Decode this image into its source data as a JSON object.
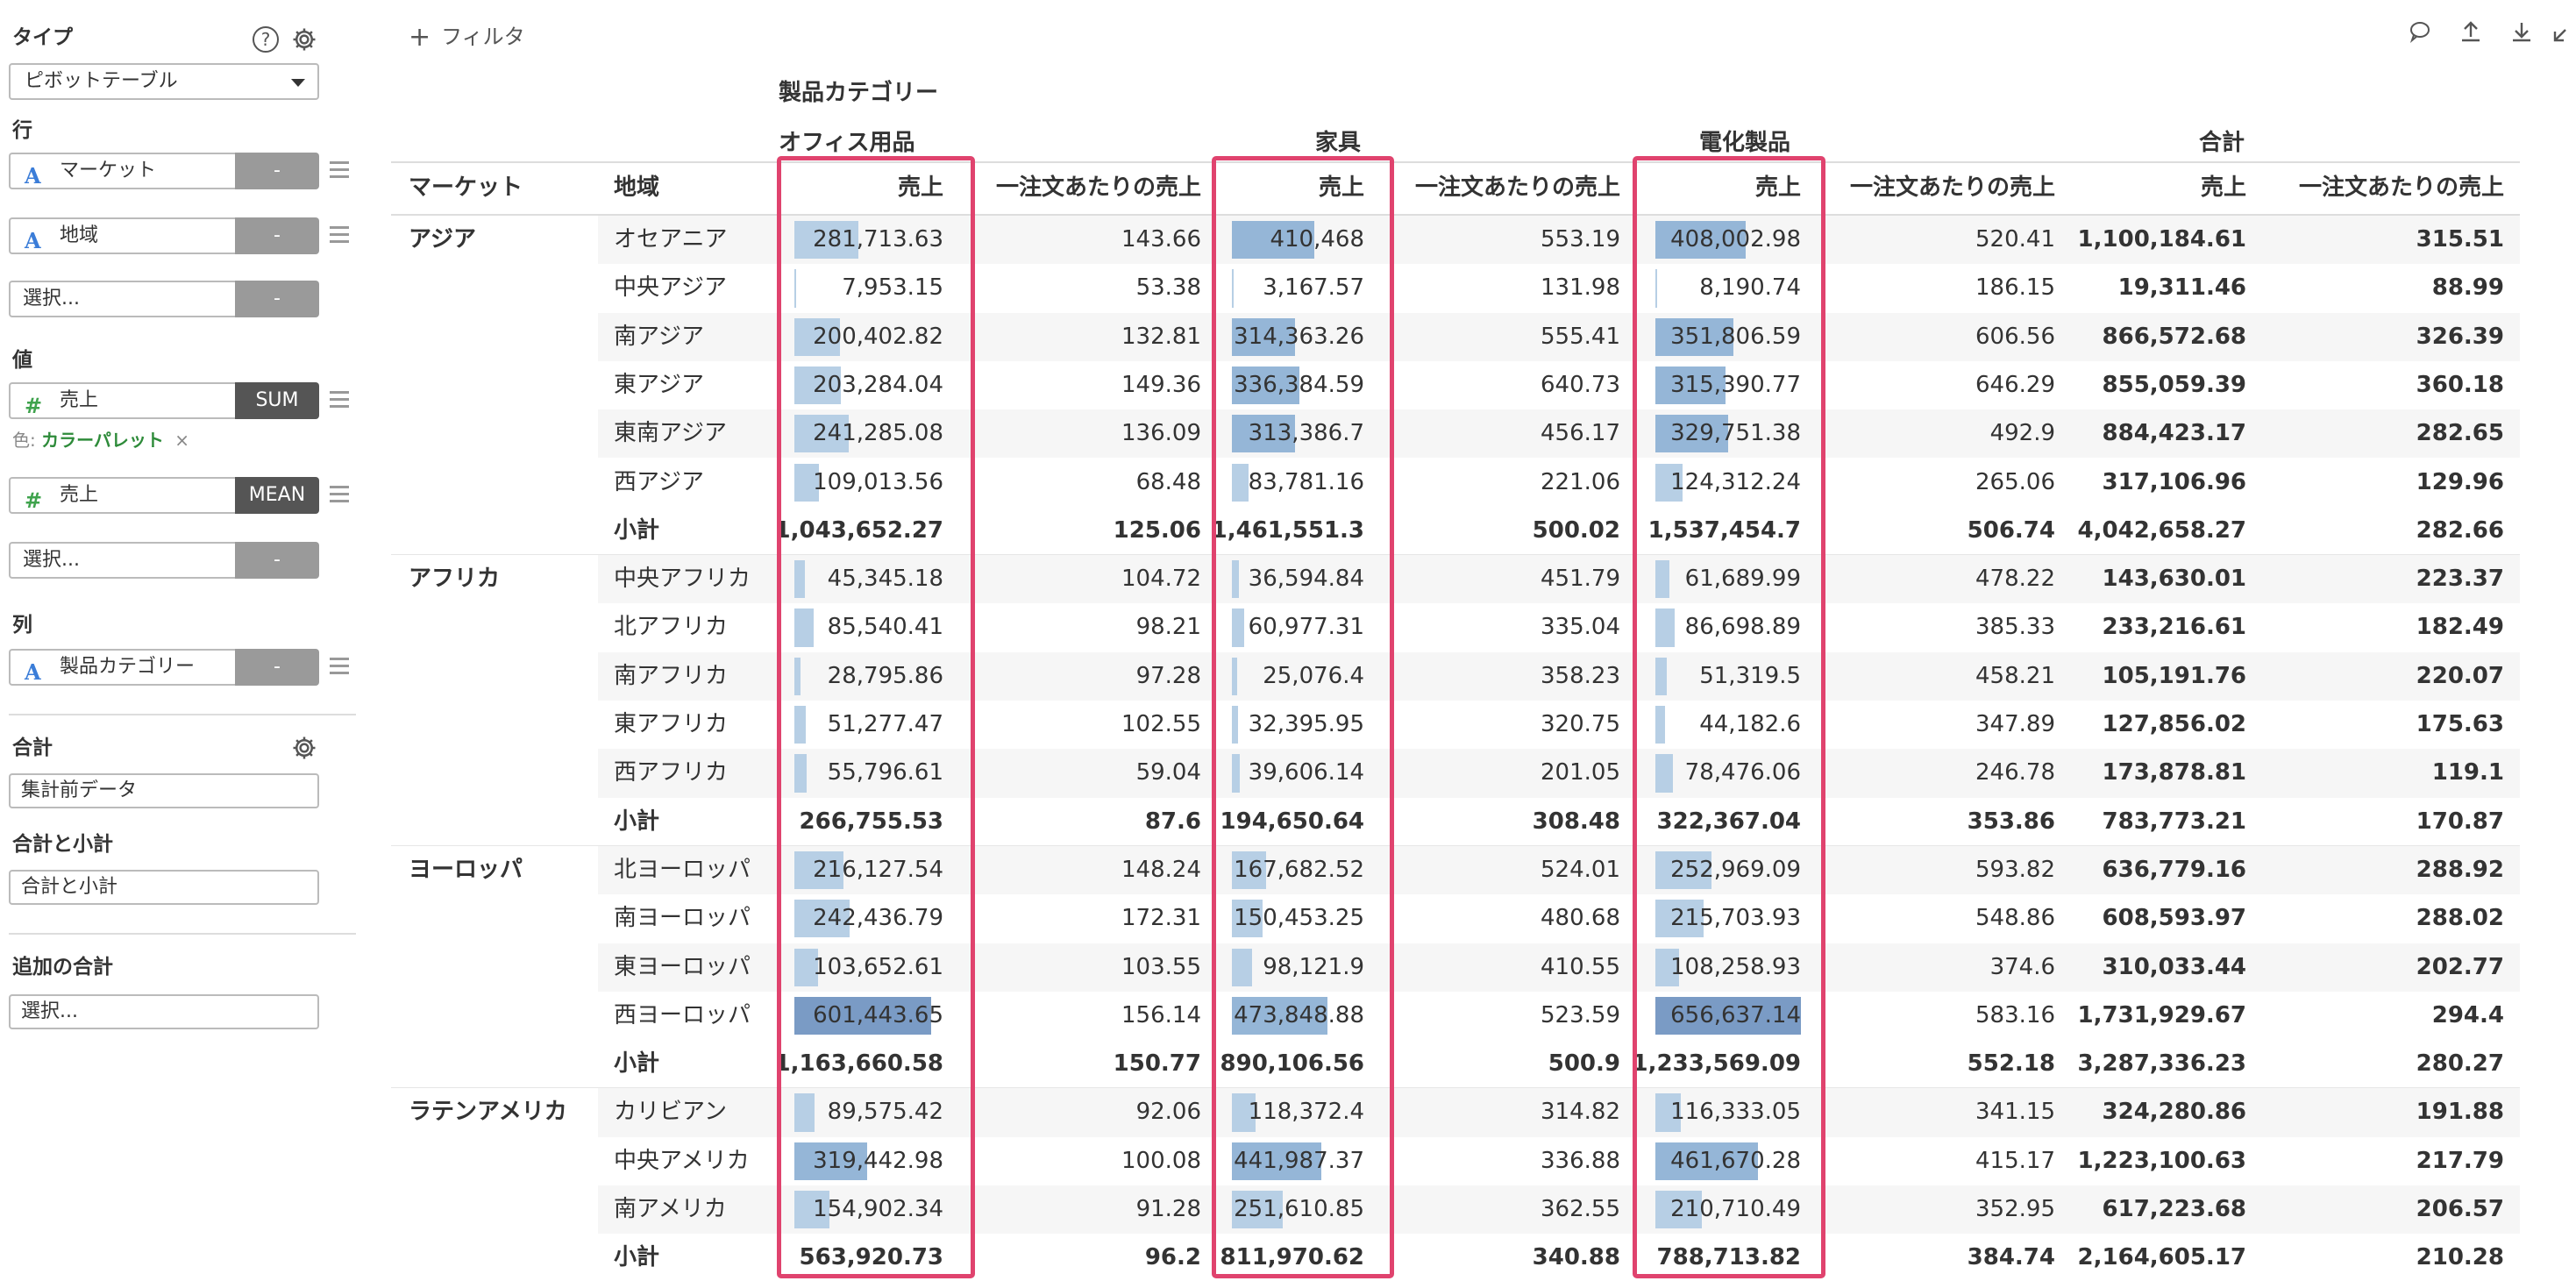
{
  "sidebar": {
    "type_label": "タイプ",
    "type_value": "ピボットテーブル",
    "row_label": "行",
    "row_fields": [
      {
        "icon": "A",
        "name": "マーケット",
        "agg": "-"
      },
      {
        "icon": "A",
        "name": "地域",
        "agg": "-"
      }
    ],
    "row_select": {
      "placeholder": "選択...",
      "agg": "-"
    },
    "value_label": "値",
    "value_fields": [
      {
        "icon": "#",
        "name": "売上",
        "agg": "SUM"
      },
      {
        "icon": "#",
        "name": "売上",
        "agg": "MEAN"
      }
    ],
    "color_prefix": "色:",
    "color_value": "カラーパレット",
    "color_remove": "×",
    "value_select": {
      "placeholder": "選択...",
      "agg": "-"
    },
    "column_label": "列",
    "column_fields": [
      {
        "icon": "A",
        "name": "製品カテゴリー",
        "agg": "-"
      }
    ],
    "total_label": "合計",
    "total_value": "集計前データ",
    "subtotal_label": "合計と小計",
    "subtotal_value": "合計と小計",
    "extra_total_label": "追加の合計",
    "extra_total_placeholder": "選択..."
  },
  "toolbar": {
    "filter_label": "フィルタ",
    "icons": [
      "comment-icon",
      "upload-icon",
      "download-icon",
      "expand-icon"
    ]
  },
  "colors": {
    "accent_box": "#e0436e",
    "bar_low": "#b7cfe5",
    "bar_high": "#7a9bc5",
    "measure_icon": "#3fa34d",
    "dimension_icon": "#3b7dd8"
  },
  "table": {
    "column_dimension_label": "製品カテゴリー",
    "categories": [
      "オフィス用品",
      "家具",
      "電化製品",
      "合計"
    ],
    "row_headers": [
      "マーケット",
      "地域"
    ],
    "measure_headers": [
      "売上",
      "一注文あたりの売上"
    ],
    "groups": [
      {
        "market": "アジア",
        "rows": [
          {
            "region": "オセアニア",
            "v": [
              "281,713.63",
              "143.66",
              "410,468",
              "553.19",
              "408,002.98",
              "520.41",
              "1,100,184.61",
              "315.51"
            ]
          },
          {
            "region": "中央アジア",
            "v": [
              "7,953.15",
              "53.38",
              "3,167.57",
              "131.98",
              "8,190.74",
              "186.15",
              "19,311.46",
              "88.99"
            ]
          },
          {
            "region": "南アジア",
            "v": [
              "200,402.82",
              "132.81",
              "314,363.26",
              "555.41",
              "351,806.59",
              "606.56",
              "866,572.68",
              "326.39"
            ]
          },
          {
            "region": "東アジア",
            "v": [
              "203,284.04",
              "149.36",
              "336,384.59",
              "640.73",
              "315,390.77",
              "646.29",
              "855,059.39",
              "360.18"
            ]
          },
          {
            "region": "東南アジア",
            "v": [
              "241,285.08",
              "136.09",
              "313,386.7",
              "456.17",
              "329,751.38",
              "492.9",
              "884,423.17",
              "282.65"
            ]
          },
          {
            "region": "西アジア",
            "v": [
              "109,013.56",
              "68.48",
              "83,781.16",
              "221.06",
              "124,312.24",
              "265.06",
              "317,106.96",
              "129.96"
            ]
          }
        ],
        "subtotal_label": "小計",
        "subtotal": [
          "1,043,652.27",
          "125.06",
          "1,461,551.3",
          "500.02",
          "1,537,454.7",
          "506.74",
          "4,042,658.27",
          "282.66"
        ]
      },
      {
        "market": "アフリカ",
        "rows": [
          {
            "region": "中央アフリカ",
            "v": [
              "45,345.18",
              "104.72",
              "36,594.84",
              "451.79",
              "61,689.99",
              "478.22",
              "143,630.01",
              "223.37"
            ]
          },
          {
            "region": "北アフリカ",
            "v": [
              "85,540.41",
              "98.21",
              "60,977.31",
              "335.04",
              "86,698.89",
              "385.33",
              "233,216.61",
              "182.49"
            ]
          },
          {
            "region": "南アフリカ",
            "v": [
              "28,795.86",
              "97.28",
              "25,076.4",
              "358.23",
              "51,319.5",
              "458.21",
              "105,191.76",
              "220.07"
            ]
          },
          {
            "region": "東アフリカ",
            "v": [
              "51,277.47",
              "102.55",
              "32,395.95",
              "320.75",
              "44,182.6",
              "347.89",
              "127,856.02",
              "175.63"
            ]
          },
          {
            "region": "西アフリカ",
            "v": [
              "55,796.61",
              "59.04",
              "39,606.14",
              "201.05",
              "78,476.06",
              "246.78",
              "173,878.81",
              "119.1"
            ]
          }
        ],
        "subtotal_label": "小計",
        "subtotal": [
          "266,755.53",
          "87.6",
          "194,650.64",
          "308.48",
          "322,367.04",
          "353.86",
          "783,773.21",
          "170.87"
        ]
      },
      {
        "market": "ヨーロッパ",
        "rows": [
          {
            "region": "北ヨーロッパ",
            "v": [
              "216,127.54",
              "148.24",
              "167,682.52",
              "524.01",
              "252,969.09",
              "593.82",
              "636,779.16",
              "288.92"
            ]
          },
          {
            "region": "南ヨーロッパ",
            "v": [
              "242,436.79",
              "172.31",
              "150,453.25",
              "480.68",
              "215,703.93",
              "548.86",
              "608,593.97",
              "288.02"
            ]
          },
          {
            "region": "東ヨーロッパ",
            "v": [
              "103,652.61",
              "103.55",
              "98,121.9",
              "410.55",
              "108,258.93",
              "374.6",
              "310,033.44",
              "202.77"
            ]
          },
          {
            "region": "西ヨーロッパ",
            "v": [
              "601,443.65",
              "156.14",
              "473,848.88",
              "523.59",
              "656,637.14",
              "583.16",
              "1,731,929.67",
              "294.4"
            ]
          }
        ],
        "subtotal_label": "小計",
        "subtotal": [
          "1,163,660.58",
          "150.77",
          "890,106.56",
          "500.9",
          "1,233,569.09",
          "552.18",
          "3,287,336.23",
          "280.27"
        ]
      },
      {
        "market": "ラテンアメリカ",
        "rows": [
          {
            "region": "カリビアン",
            "v": [
              "89,575.42",
              "92.06",
              "118,372.4",
              "314.82",
              "116,333.05",
              "341.15",
              "324,280.86",
              "191.88"
            ]
          },
          {
            "region": "中央アメリカ",
            "v": [
              "319,442.98",
              "100.08",
              "441,987.37",
              "336.88",
              "461,670.28",
              "415.17",
              "1,223,100.63",
              "217.79"
            ]
          },
          {
            "region": "南アメリカ",
            "v": [
              "154,902.34",
              "91.28",
              "251,610.85",
              "362.55",
              "210,710.49",
              "352.95",
              "617,223.68",
              "206.57"
            ]
          }
        ],
        "subtotal_label": "小計",
        "subtotal": [
          "563,920.73",
          "96.2",
          "811,970.62",
          "340.88",
          "788,713.82",
          "384.74",
          "2,164,605.17",
          "210.28"
        ]
      }
    ],
    "bar_scale_max": 656637.14
  }
}
